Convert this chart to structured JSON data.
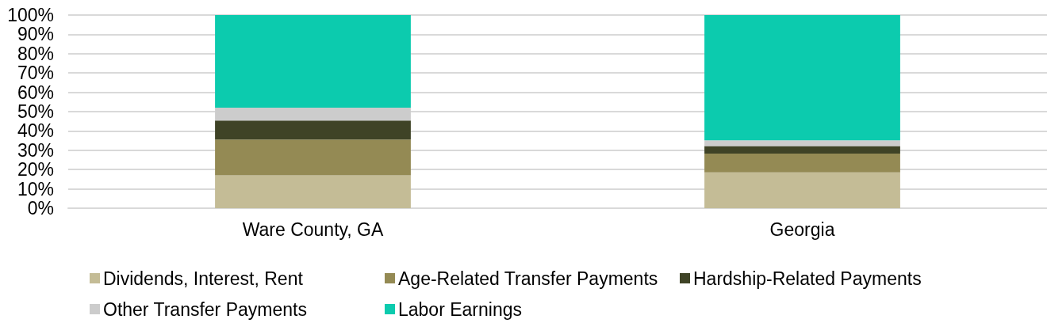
{
  "chart_data": {
    "type": "bar",
    "stacked": true,
    "categories": [
      "Ware County, GA",
      "Georgia"
    ],
    "series": [
      {
        "name": "Dividends, Interest, Rent",
        "color": "#c4bc96",
        "values": [
          17.0,
          18.5
        ]
      },
      {
        "name": "Age-Related Transfer Payments",
        "color": "#948a54",
        "values": [
          18.6,
          9.8
        ]
      },
      {
        "name": "Hardship-Related Payments",
        "color": "#3f4326",
        "values": [
          9.8,
          3.9
        ]
      },
      {
        "name": "Other Transfer Payments",
        "color": "#cccccc",
        "values": [
          6.7,
          2.9
        ]
      },
      {
        "name": "Labor Earnings",
        "color": "#0ccbae",
        "values": [
          47.9,
          64.9
        ]
      }
    ],
    "ylim": [
      0,
      100
    ],
    "yticks": [
      {
        "value": 0,
        "label": "0%"
      },
      {
        "value": 10,
        "label": "10%"
      },
      {
        "value": 20,
        "label": "20%"
      },
      {
        "value": 30,
        "label": "30%"
      },
      {
        "value": 40,
        "label": "40%"
      },
      {
        "value": 50,
        "label": "50%"
      },
      {
        "value": 60,
        "label": "60%"
      },
      {
        "value": 70,
        "label": "70%"
      },
      {
        "value": 80,
        "label": "80%"
      },
      {
        "value": 90,
        "label": "90%"
      },
      {
        "value": 100,
        "label": "100%"
      }
    ],
    "grid": "y",
    "legend": "bottom"
  }
}
